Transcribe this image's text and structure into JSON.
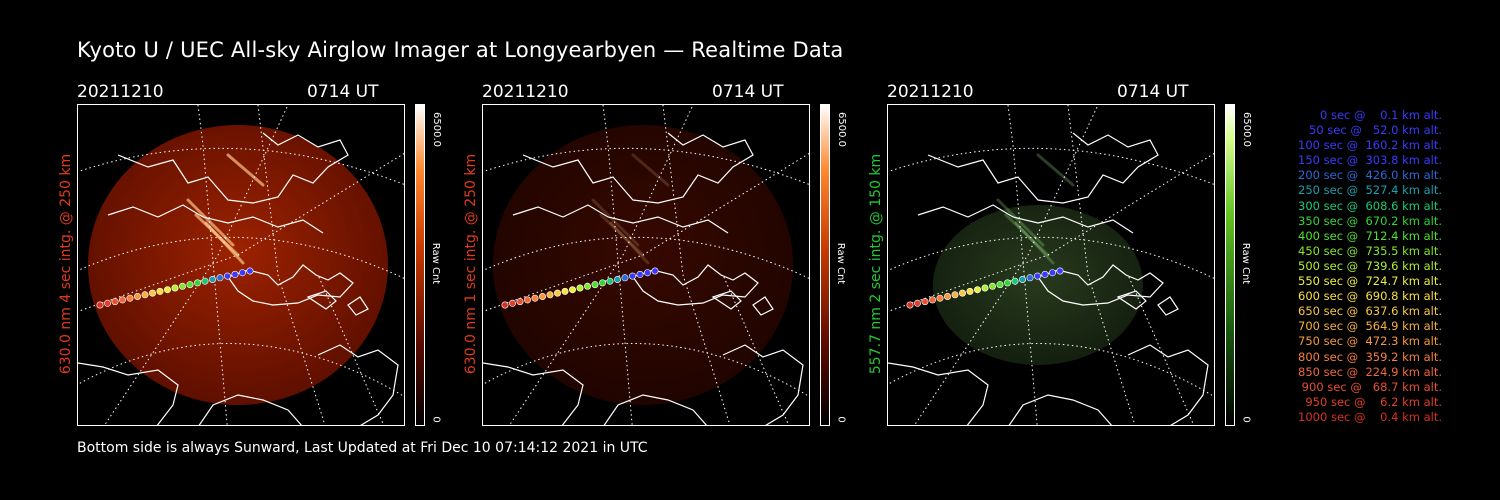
{
  "title": "Kyoto U / UEC All-sky Airglow Imager at Longyearbyen — Realtime Data",
  "footer": "Bottom side is always Sunward, Last Updated at Fri Dec 10 07:14:12 2021 in UTC",
  "panels": [
    {
      "date": "20211210",
      "time": "0714 UT",
      "ylabel": "630.0 nm 4 sec intg. @ 250 km",
      "ycolor": "#e03a1a",
      "cbar_max": "6500.0",
      "cbar_label": "Raw Cnt",
      "cbar_min": "0",
      "colormap": "red",
      "brightness": 0.85
    },
    {
      "date": "20211210",
      "time": "0714 UT",
      "ylabel": "630.0 nm 1 sec intg. @ 250 km",
      "ycolor": "#e03a1a",
      "cbar_max": "6500.0",
      "cbar_label": "Raw Cnt",
      "cbar_min": "0",
      "colormap": "red",
      "brightness": 0.22
    },
    {
      "date": "20211210",
      "time": "0714 UT",
      "ylabel": "557.7 nm 2 sec intg. @ 150 km",
      "ycolor": "#22c832",
      "cbar_max": "6500.0",
      "cbar_label": "Raw Cnt",
      "cbar_min": "0",
      "colormap": "green",
      "brightness": 0.35
    }
  ],
  "legend": [
    {
      "text": "   0 sec @    0.1 km alt.",
      "color": "#3a3aff"
    },
    {
      "text": "  50 sec @   52.0 km alt.",
      "color": "#3a3aff"
    },
    {
      "text": " 100 sec @  160.2 km alt.",
      "color": "#3a3aff"
    },
    {
      "text": " 150 sec @  303.8 km alt.",
      "color": "#3a3aff"
    },
    {
      "text": " 200 sec @  426.0 km alt.",
      "color": "#2a6ad8"
    },
    {
      "text": " 250 sec @  527.4 km alt.",
      "color": "#1aa0b0"
    },
    {
      "text": " 300 sec @  608.6 km alt.",
      "color": "#1ac878"
    },
    {
      "text": " 350 sec @  670.2 km alt.",
      "color": "#30d830"
    },
    {
      "text": " 400 sec @  712.4 km alt.",
      "color": "#50e030"
    },
    {
      "text": " 450 sec @  735.5 km alt.",
      "color": "#80e830"
    },
    {
      "text": " 500 sec @  739.6 km alt.",
      "color": "#b0f030"
    },
    {
      "text": " 550 sec @  724.7 km alt.",
      "color": "#e8f040"
    },
    {
      "text": " 600 sec @  690.8 km alt.",
      "color": "#f8e040"
    },
    {
      "text": " 650 sec @  637.6 km alt.",
      "color": "#f8c840"
    },
    {
      "text": " 700 sec @  564.9 km alt.",
      "color": "#f8b040"
    },
    {
      "text": " 750 sec @  472.3 km alt.",
      "color": "#f89838"
    },
    {
      "text": " 800 sec @  359.2 km alt.",
      "color": "#f88038"
    },
    {
      "text": " 850 sec @  224.9 km alt.",
      "color": "#f06838"
    },
    {
      "text": " 900 sec @   68.7 km alt.",
      "color": "#e85030"
    },
    {
      "text": " 950 sec @    6.2 km alt.",
      "color": "#e04028"
    },
    {
      "text": "1000 sec @    0.4 km alt.",
      "color": "#d83020"
    }
  ]
}
